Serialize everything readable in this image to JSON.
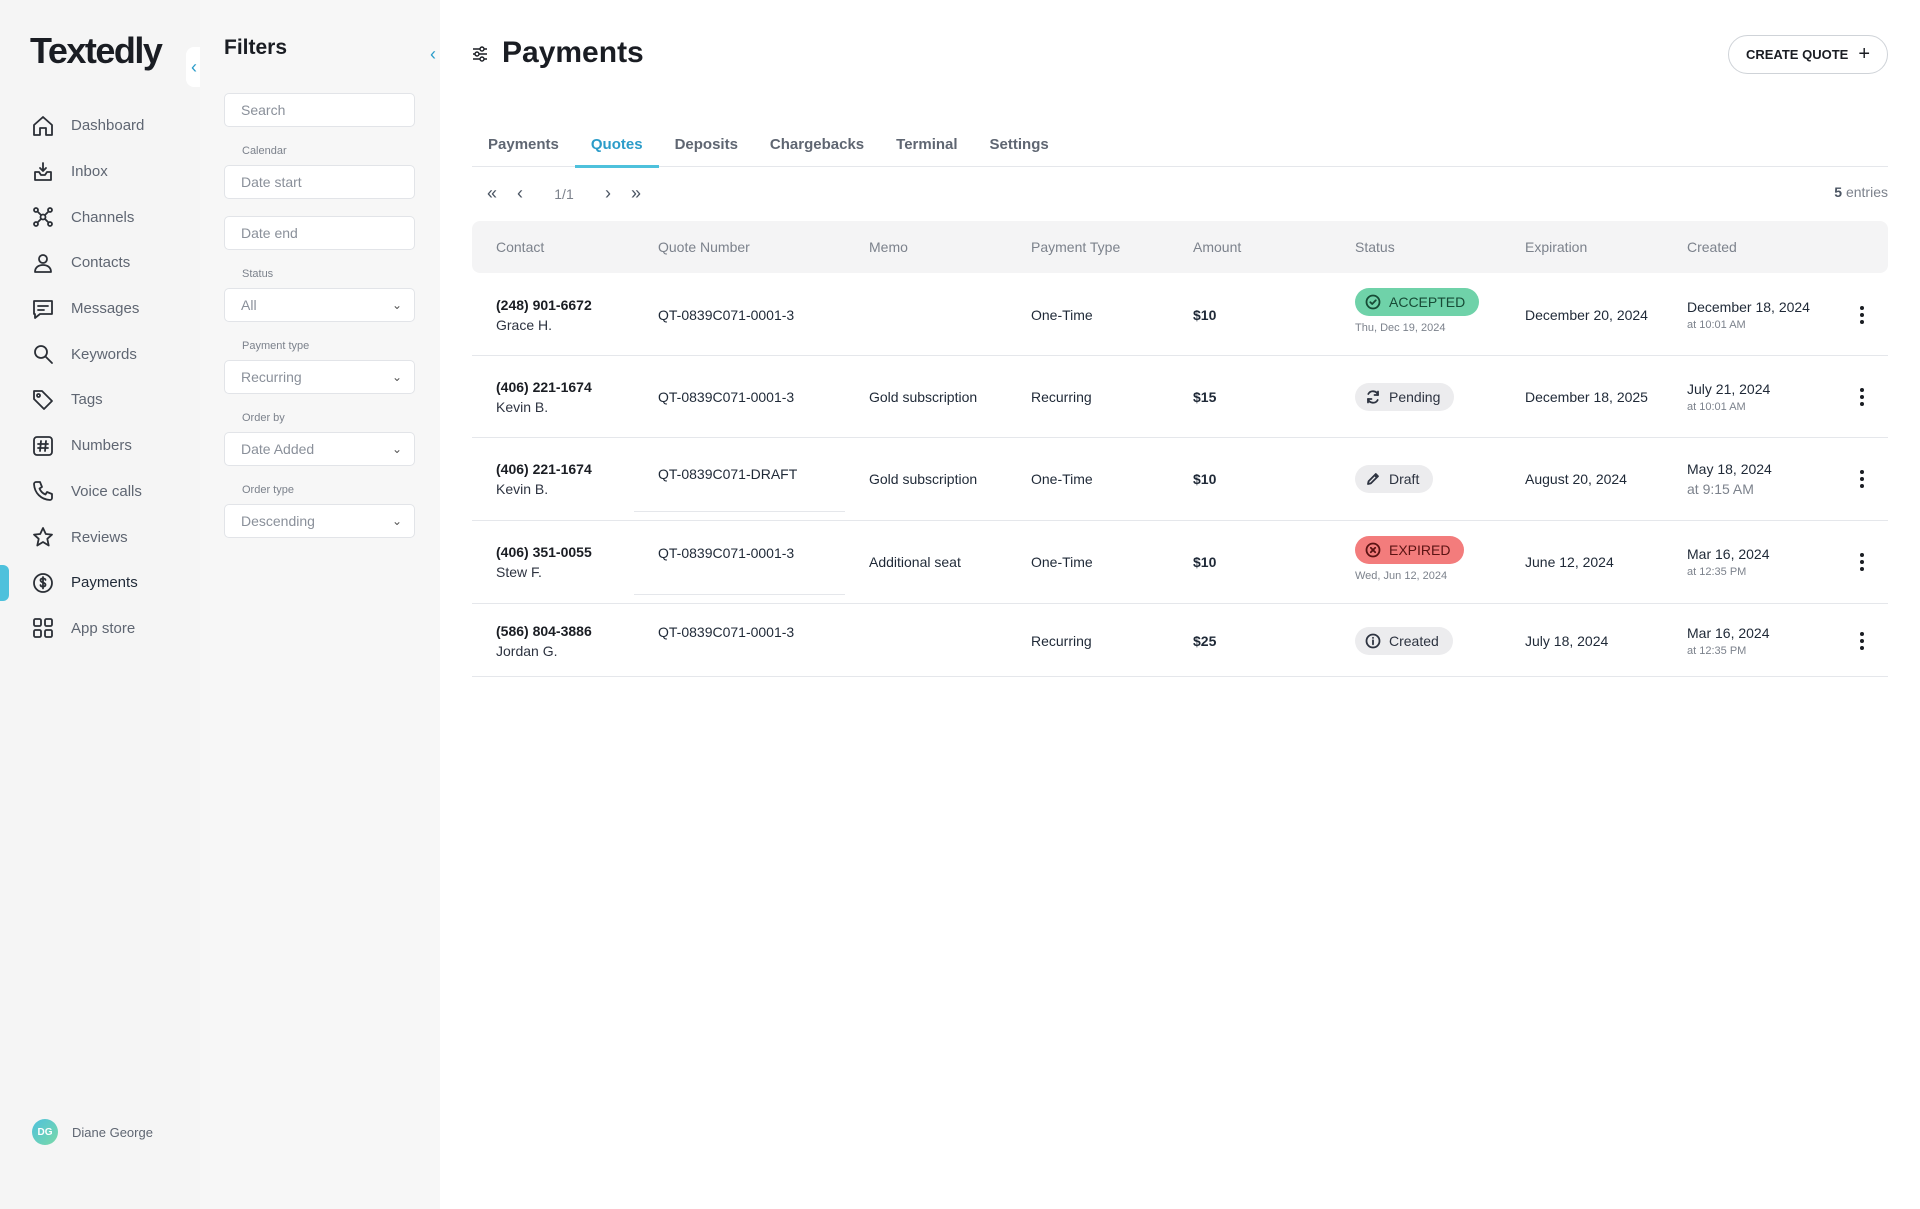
{
  "app": {
    "logo": "Textedly",
    "user": {
      "initials": "DG",
      "name": "Diane George"
    }
  },
  "sidebar": {
    "items": [
      {
        "label": "Dashboard",
        "icon": "home-icon"
      },
      {
        "label": "Inbox",
        "icon": "inbox-icon"
      },
      {
        "label": "Channels",
        "icon": "channels-icon"
      },
      {
        "label": "Contacts",
        "icon": "contacts-icon"
      },
      {
        "label": "Messages",
        "icon": "messages-icon"
      },
      {
        "label": "Keywords",
        "icon": "keywords-icon"
      },
      {
        "label": "Tags",
        "icon": "tag-icon"
      },
      {
        "label": "Numbers",
        "icon": "hash-icon"
      },
      {
        "label": "Voice calls",
        "icon": "phone-icon"
      },
      {
        "label": "Reviews",
        "icon": "star-icon"
      },
      {
        "label": "Payments",
        "icon": "dollar-icon",
        "active": true
      },
      {
        "label": "App store",
        "icon": "grid-icon"
      }
    ]
  },
  "filters": {
    "title": "Filters",
    "search_placeholder": "Search",
    "calendar_label": "Calendar",
    "date_start_placeholder": "Date start",
    "date_end_placeholder": "Date end",
    "status_label": "Status",
    "status_value": "All",
    "payment_type_label": "Payment type",
    "payment_type_value": "Recurring",
    "order_by_label": "Order by",
    "order_by_value": "Date Added",
    "order_type_label": "Order type",
    "order_type_value": "Descending"
  },
  "header": {
    "title": "Payments",
    "create_button": "CREATE QUOTE",
    "create_icon": "+"
  },
  "tabs": [
    {
      "label": "Payments"
    },
    {
      "label": "Quotes",
      "active": true
    },
    {
      "label": "Deposits"
    },
    {
      "label": "Chargebacks"
    },
    {
      "label": "Terminal"
    },
    {
      "label": "Settings"
    }
  ],
  "pagination": {
    "page": "1/1",
    "entries_count": "5",
    "entries_label": " entries"
  },
  "table": {
    "columns": [
      "Contact",
      "Quote Number",
      "Memo",
      "Payment Type",
      "Amount",
      "Status",
      "Expiration",
      "Created"
    ],
    "rows": [
      {
        "phone": "(248) 901-6672",
        "name": "Grace H.",
        "quote": "QT-0839C071-0001-3",
        "memo": "",
        "payment_type": "One-Time",
        "amount": "$10",
        "status": "ACCEPTED",
        "status_kind": "accepted",
        "status_sub": "Thu, Dec 19, 2024",
        "expiration": "December 20, 2024",
        "created_date": "December 18, 2024",
        "created_time": "at 10:01 AM"
      },
      {
        "phone": "(406) 221-1674",
        "name": "Kevin B.",
        "quote": "QT-0839C071-0001-3",
        "memo": "Gold subscription",
        "payment_type": "Recurring",
        "amount": "$15",
        "status": "Pending",
        "status_kind": "pending",
        "status_sub": "",
        "expiration": "December 18, 2025",
        "created_date": "July 21, 2024",
        "created_time": "at 10:01 AM"
      },
      {
        "phone": "(406) 221-1674",
        "name": "Kevin B.",
        "quote": "QT-0839C071-DRAFT",
        "memo": "Gold subscription",
        "payment_type": "One-Time",
        "amount": "$10",
        "status": "Draft",
        "status_kind": "draft",
        "status_sub": "",
        "expiration": "August 20, 2024",
        "created_date": "May 18, 2024",
        "created_time": "at 9:15 AM"
      },
      {
        "phone": "(406) 351-0055",
        "name": "Stew F.",
        "quote": "QT-0839C071-0001-3",
        "memo": "Additional seat",
        "payment_type": "One-Time",
        "amount": "$10",
        "status": "EXPIRED",
        "status_kind": "expired",
        "status_sub": "Wed, Jun 12, 2024",
        "expiration": "June 12, 2024",
        "created_date": "Mar 16, 2024",
        "created_time": "at 12:35 PM"
      },
      {
        "phone": "(586) 804-3886",
        "name": "Jordan G.",
        "quote": "QT-0839C071-0001-3",
        "memo": "",
        "payment_type": "Recurring",
        "amount": "$25",
        "status": "Created",
        "status_kind": "created",
        "status_sub": "",
        "expiration": "July 18, 2024",
        "created_date": "Mar 16, 2024",
        "created_time": "at 12:35 PM"
      }
    ]
  },
  "colors": {
    "accent": "#4ec1dc",
    "accepted": "#6fd2a9",
    "expired": "#f37c7c",
    "neutral_badge": "#ececee"
  }
}
